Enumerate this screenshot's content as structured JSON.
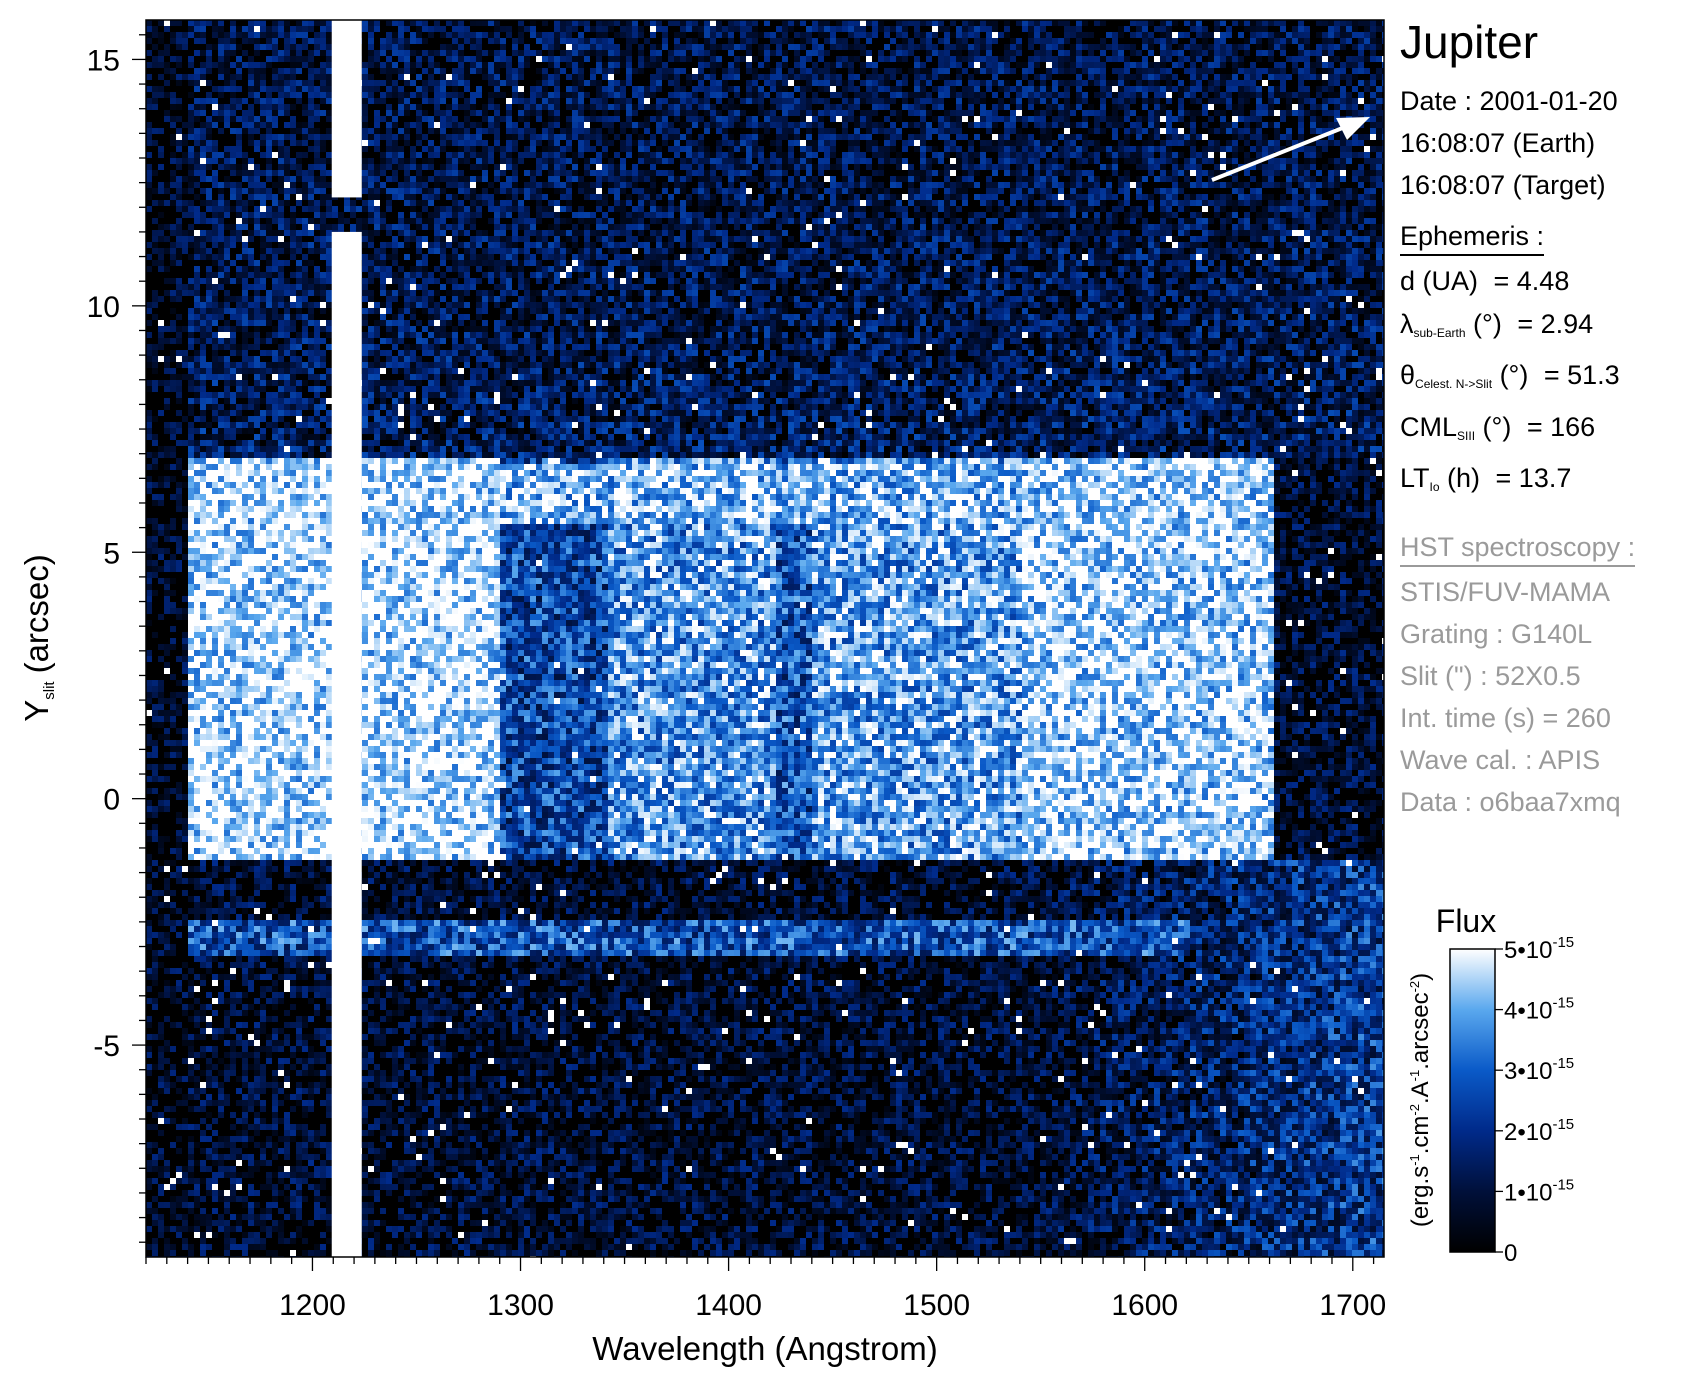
{
  "chart_data": {
    "type": "heatmap",
    "title": "",
    "xlabel": "Wavelength (Angstrom)",
    "ylabel_main": "Y",
    "ylabel_sub": "slit",
    "ylabel_unit": "(arcsec)",
    "xlim": [
      1120,
      1715
    ],
    "ylim": [
      -9.3,
      15.8
    ],
    "x_ticks": [
      1200,
      1300,
      1400,
      1500,
      1600,
      1700
    ],
    "y_ticks": [
      15,
      10,
      5,
      0,
      -5
    ],
    "y_tick_labels": [
      "15",
      "10",
      "5",
      "0",
      "-5"
    ],
    "zlim": [
      0,
      5e-15
    ],
    "colorbar": {
      "title": "Flux",
      "unit": "(erg.s-1.cm-2.A-1.arcsec-2)",
      "ticks": [
        {
          "mantissa": "5•10",
          "exp": "-15"
        },
        {
          "mantissa": "4•10",
          "exp": "-15"
        },
        {
          "mantissa": "3•10",
          "exp": "-15"
        },
        {
          "mantissa": "2•10",
          "exp": "-15"
        },
        {
          "mantissa": "1•10",
          "exp": "-15"
        },
        {
          "mantissa": "0",
          "exp": ""
        }
      ],
      "colors": [
        "#000000",
        "#00103a",
        "#002a8a",
        "#0a5ac8",
        "#5aa8ee",
        "#ffffff"
      ]
    },
    "features": {
      "lyman_alpha_wavelength": 1216,
      "slit_gap_y": [
        11.5,
        12.2
      ],
      "disk_y_range": [
        -1.2,
        7.0
      ],
      "disk_x_range": [
        1140,
        1660
      ],
      "bright_band_y": [
        -2.6,
        -3.0
      ]
    },
    "direction_arrow": "north"
  },
  "panel": {
    "target": "Jupiter",
    "date_label": "Date : 2001-01-20",
    "time_earth": "16:08:07 (Earth)",
    "time_target": "16:08:07 (Target)",
    "ephemeris_title": "Ephemeris :",
    "ephemeris": [
      {
        "name": "d (UA)",
        "sub": "",
        "rest": "",
        "value": "= 4.48"
      },
      {
        "name": "λ",
        "sub": "sub-Earth",
        "rest": " (°)",
        "value": "= 2.94"
      },
      {
        "name": "θ",
        "sub": "Celest. N->Slit",
        "rest": " (°)",
        "value": "= 51.3"
      },
      {
        "name": "CML",
        "sub": "SIII",
        "rest": " (°)",
        "value": "= 166"
      },
      {
        "name": "LT",
        "sub": "Io",
        "rest": " (h)",
        "value": "= 13.7"
      }
    ],
    "hst_title": "HST spectroscopy :",
    "hst": [
      "STIS/FUV-MAMA",
      "Grating : G140L",
      "Slit (\") : 52X0.5",
      "Int. time (s) = 260",
      "Wave cal. : APIS",
      "Data : o6baa7xmq"
    ]
  },
  "colors": {
    "background": "#000000",
    "text_gray": "#9a9a9a"
  }
}
